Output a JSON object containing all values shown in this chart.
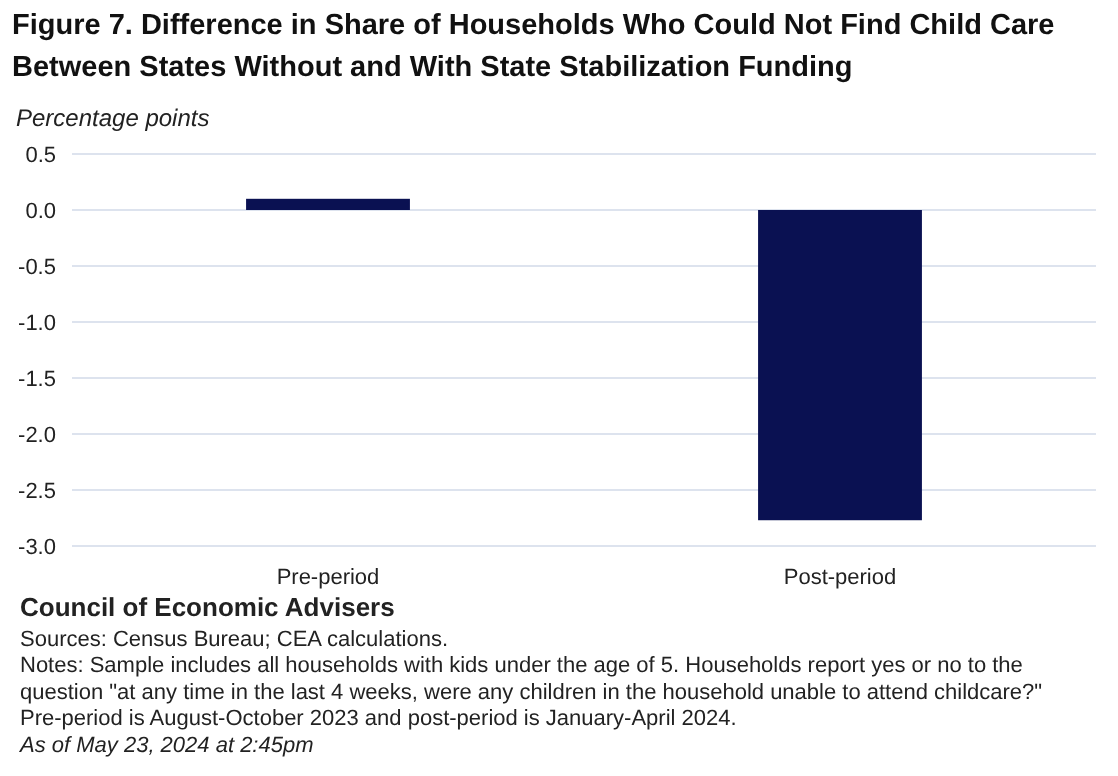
{
  "chart_data": {
    "type": "bar",
    "title": "Figure 7. Difference in Share of Households Who Could Not Find Child Care Between States Without and With State Stabilization Funding",
    "ylabel": "Percentage points",
    "categories": [
      "Pre-period",
      "Post-period"
    ],
    "values": [
      0.1,
      -2.77
    ],
    "color": "#0a1152",
    "ylim": [
      -3.0,
      0.5
    ],
    "yticks": [
      {
        "value": 0.5,
        "label": "0.5"
      },
      {
        "value": 0,
        "label": "0.0"
      },
      {
        "value": -0.5,
        "label": "-0.5"
      },
      {
        "value": -1,
        "label": "-1.0"
      },
      {
        "value": -1.5,
        "label": "-1.5"
      },
      {
        "value": -2,
        "label": "-2.0"
      },
      {
        "value": -2.5,
        "label": "-2.5"
      },
      {
        "value": -3,
        "label": "-3.0"
      }
    ],
    "grid": "y",
    "annotations": [
      "Council of Economic Advisers",
      "Sources: Census Bureau; CEA calculations.",
      "Notes: Sample includes all households with kids under the age of 5. Households report yes or no to the question \"at any time in the last 4 weeks, were any children in the household unable to attend childcare?\" Pre-period is August-October 2023 and post-period is January-April 2024.",
      "As of May 23, 2024 at 2:45pm"
    ]
  }
}
